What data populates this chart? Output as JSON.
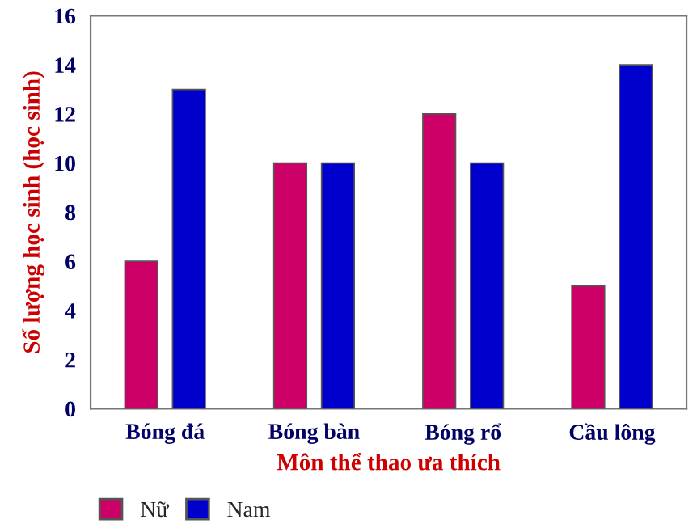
{
  "chart_data": {
    "type": "bar",
    "xlabel": "Môn thể thao ưa thích",
    "ylabel": "Số lượng học sinh (học sinh)",
    "categories": [
      "Bóng đá",
      "Bóng bàn",
      "Bóng rổ",
      "Cầu lông"
    ],
    "series": [
      {
        "name": "Nữ",
        "color": "#cc0066",
        "values": [
          6,
          10,
          12,
          5
        ]
      },
      {
        "name": "Nam",
        "color": "#0000cc",
        "values": [
          13,
          10,
          10,
          14
        ]
      }
    ],
    "ylim": [
      0,
      16
    ],
    "yticks": [
      0,
      2,
      4,
      6,
      8,
      10,
      12,
      14,
      16
    ],
    "grid": false,
    "legend": "bottom"
  }
}
